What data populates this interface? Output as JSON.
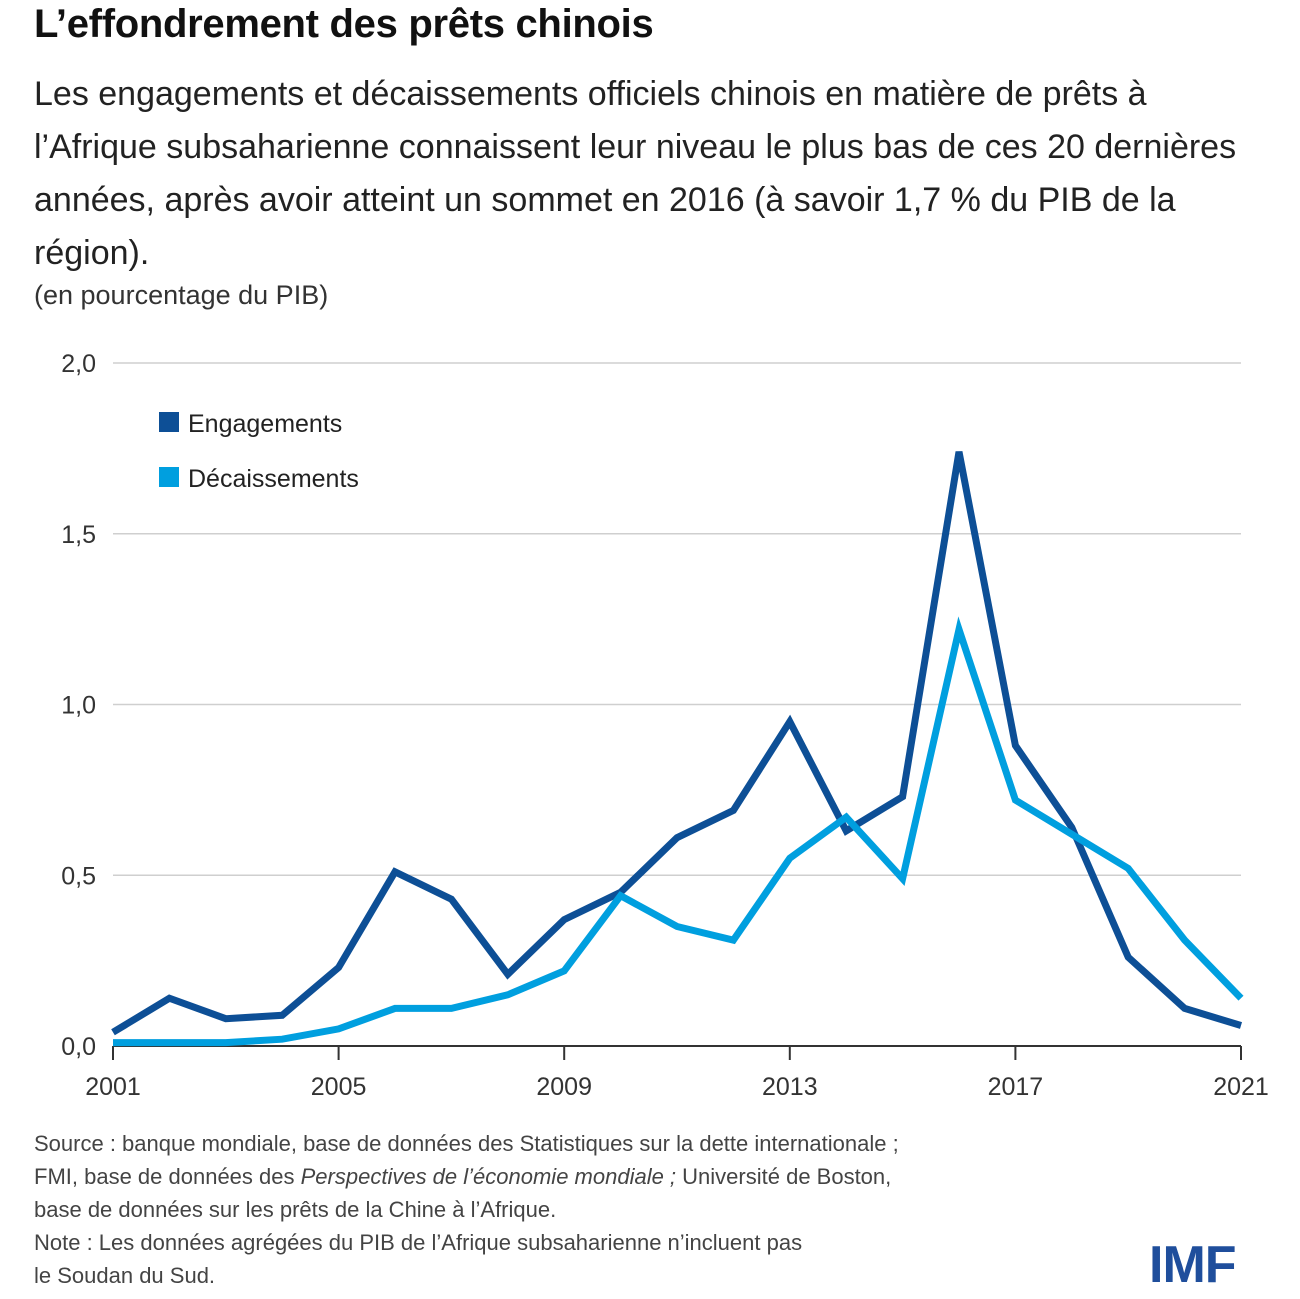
{
  "header": {
    "title": "L’effondrement des prêts chinois",
    "subtitle": "Les engagements et décaissements officiels chinois en matière de prêts à l’Afrique subsaharienne connaissent leur niveau le plus bas de ces 20 dernières années, après avoir atteint un sommet en 2016 (à savoir 1,7 % du PIB de la région).",
    "unit_note": "(en pourcentage du PIB)"
  },
  "chart_data": {
    "type": "line",
    "x": [
      2001,
      2002,
      2003,
      2004,
      2005,
      2006,
      2007,
      2008,
      2009,
      2010,
      2011,
      2012,
      2013,
      2014,
      2015,
      2016,
      2017,
      2018,
      2019,
      2020,
      2021
    ],
    "xticks": [
      "2001",
      "2005",
      "2009",
      "2013",
      "2017",
      "2021"
    ],
    "yticks": [
      "0,0",
      "0,5",
      "1,0",
      "1,5",
      "2,0"
    ],
    "ylim": [
      0,
      2
    ],
    "grid": true,
    "legend_position": "top-left",
    "series": [
      {
        "name": "Engagements",
        "color": "#0d4f96",
        "values": [
          0.04,
          0.14,
          0.08,
          0.09,
          0.23,
          0.51,
          0.43,
          0.21,
          0.37,
          0.45,
          0.61,
          0.69,
          0.95,
          0.63,
          0.73,
          1.74,
          0.88,
          0.64,
          0.26,
          0.11,
          0.06
        ]
      },
      {
        "name": "Décaissements",
        "color": "#009fdf",
        "values": [
          0.01,
          0.01,
          0.01,
          0.02,
          0.05,
          0.11,
          0.11,
          0.15,
          0.22,
          0.44,
          0.35,
          0.31,
          0.55,
          0.67,
          0.49,
          1.22,
          0.72,
          0.62,
          0.52,
          0.31,
          0.14
        ]
      }
    ]
  },
  "footer": {
    "source_line1": "Source : banque mondiale, base de données des Statistiques sur la dette internationale ;",
    "source_line2_pre": "FMI, base de données des ",
    "source_line2_italic": "Perspectives de l’économie mondiale ;",
    "source_line2_post": " Université de Boston,",
    "source_line3": "base de données sur les prêts de la Chine à l’Afrique.",
    "note_line1": "Note : Les données agrégées du PIB de l’Afrique subsaharienne n’incluent pas",
    "note_line2": "le Soudan du Sud.",
    "logo": "IMF"
  }
}
